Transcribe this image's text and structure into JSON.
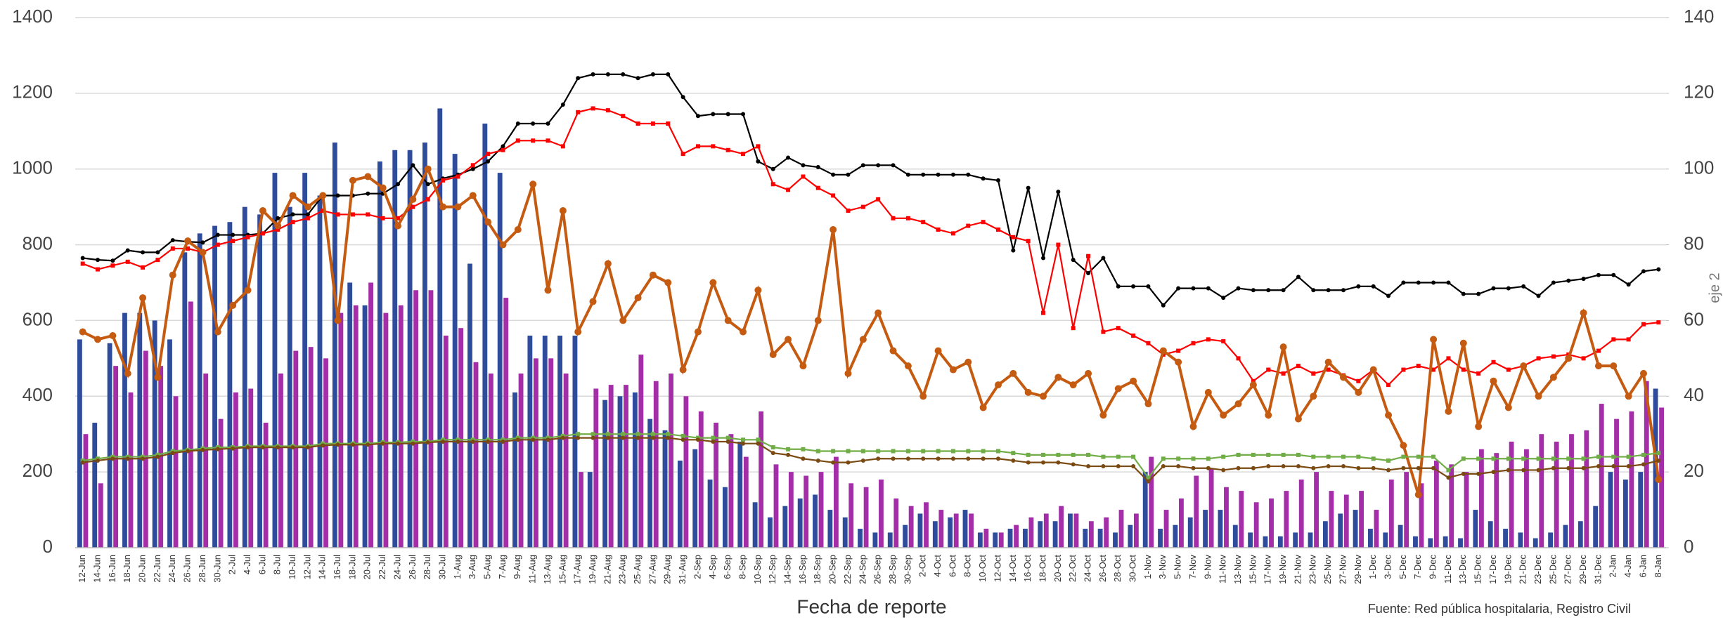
{
  "chart_data": {
    "type": "bar",
    "x_label": "Fecha de reporte",
    "y2_label": "eje 2",
    "source": "Fuente: Red pública hospitalaria, Registro Civil",
    "categories": [
      "12-Jun",
      "14-Jun",
      "16-Jun",
      "18-Jun",
      "20-Jun",
      "22-Jun",
      "24-Jun",
      "26-Jun",
      "28-Jun",
      "30-Jun",
      "2-Jul",
      "4-Jul",
      "6-Jul",
      "8-Jul",
      "10-Jul",
      "12-Jul",
      "14-Jul",
      "16-Jul",
      "18-Jul",
      "20-Jul",
      "22-Jul",
      "24-Jul",
      "26-Jul",
      "28-Jul",
      "30-Jul",
      "1-Aug",
      "3-Aug",
      "5-Aug",
      "7-Aug",
      "9-Aug",
      "11-Aug",
      "13-Aug",
      "15-Aug",
      "17-Aug",
      "19-Aug",
      "21-Aug",
      "23-Aug",
      "25-Aug",
      "27-Aug",
      "29-Aug",
      "31-Aug",
      "2-Sep",
      "4-Sep",
      "6-Sep",
      "8-Sep",
      "10-Sep",
      "12-Sep",
      "14-Sep",
      "16-Sep",
      "18-Sep",
      "20-Sep",
      "22-Sep",
      "24-Sep",
      "26-Sep",
      "28-Sep",
      "30-Sep",
      "2-Oct",
      "4-Oct",
      "6-Oct",
      "8-Oct",
      "10-Oct",
      "12-Oct",
      "14-Oct",
      "16-Oct",
      "18-Oct",
      "20-Oct",
      "22-Oct",
      "24-Oct",
      "26-Oct",
      "28-Oct",
      "30-Oct",
      "1-Nov",
      "3-Nov",
      "5-Nov",
      "7-Nov",
      "9-Nov",
      "11-Nov",
      "13-Nov",
      "15-Nov",
      "17-Nov",
      "19-Nov",
      "21-Nov",
      "23-Nov",
      "25-Nov",
      "27-Nov",
      "29-Nov",
      "1-Dec",
      "3-Dec",
      "5-Dec",
      "7-Dec",
      "9-Dec",
      "11-Dec",
      "13-Dec",
      "15-Dec",
      "17-Dec",
      "19-Dec",
      "21-Dec",
      "23-Dec",
      "25-Dec",
      "27-Dec",
      "29-Dec",
      "31-Dec",
      "2-Jan",
      "4-Jan",
      "6-Jan",
      "8-Jan"
    ],
    "ylim": [
      0,
      1400
    ],
    "yticks": [
      0,
      200,
      400,
      600,
      800,
      1000,
      1200,
      1400
    ],
    "y2lim": [
      0,
      140
    ],
    "y2ticks": [
      0,
      20,
      40,
      60,
      80,
      100,
      120,
      140
    ],
    "grid": true,
    "series": [
      {
        "type": "bar",
        "color": "#2f4b9b",
        "values": [
          550,
          330,
          540,
          620,
          620,
          600,
          550,
          780,
          830,
          850,
          860,
          900,
          880,
          990,
          900,
          990,
          930,
          1070,
          700,
          640,
          1020,
          1050,
          1050,
          1070,
          1160,
          1040,
          750,
          1120,
          990,
          410,
          560,
          560,
          560,
          560,
          200,
          390,
          400,
          410,
          340,
          310,
          230,
          260,
          180,
          160,
          280,
          120,
          80,
          110,
          130,
          140,
          100,
          80,
          50,
          40,
          40,
          60,
          90,
          70,
          80,
          100,
          40,
          40,
          50,
          50,
          70,
          70,
          90,
          50,
          50,
          40,
          60,
          200,
          50,
          60,
          80,
          100,
          100,
          60,
          40,
          30,
          30,
          40,
          40,
          70,
          90,
          100,
          50,
          40,
          60,
          30,
          25,
          30,
          25,
          100,
          70,
          50,
          40,
          25,
          40,
          60,
          70,
          110,
          200,
          180,
          200,
          420
        ]
      },
      {
        "type": "bar",
        "color": "#a32ea8",
        "values": [
          300,
          170,
          480,
          410,
          520,
          480,
          400,
          650,
          460,
          340,
          410,
          420,
          330,
          460,
          520,
          530,
          500,
          620,
          640,
          700,
          620,
          640,
          680,
          680,
          560,
          580,
          490,
          460,
          660,
          460,
          500,
          500,
          460,
          200,
          420,
          430,
          430,
          510,
          440,
          460,
          400,
          360,
          330,
          300,
          240,
          360,
          220,
          200,
          190,
          200,
          240,
          170,
          160,
          180,
          130,
          110,
          120,
          100,
          90,
          90,
          50,
          40,
          60,
          80,
          90,
          110,
          90,
          70,
          80,
          100,
          90,
          240,
          100,
          130,
          190,
          210,
          160,
          150,
          120,
          130,
          150,
          180,
          200,
          150,
          140,
          150,
          100,
          180,
          200,
          170,
          230,
          220,
          200,
          260,
          250,
          280,
          260,
          300,
          280,
          300,
          310,
          380,
          340,
          360,
          440,
          370
        ]
      },
      {
        "type": "line",
        "color": "#000000",
        "marker": "circle",
        "values": [
          765,
          760,
          758,
          785,
          780,
          780,
          812,
          808,
          806,
          826,
          826,
          826,
          830,
          870,
          880,
          880,
          930,
          930,
          930,
          935,
          935,
          960,
          1010,
          960,
          975,
          985,
          1000,
          1020,
          1060,
          1120,
          1120,
          1120,
          1170,
          1240,
          1250,
          1250,
          1250,
          1240,
          1250,
          1250,
          1190,
          1140,
          1145,
          1145,
          1145,
          1020,
          1000,
          1030,
          1010,
          1005,
          985,
          985,
          1010,
          1010,
          1010,
          985,
          985,
          985,
          985,
          985,
          975,
          970,
          785,
          950,
          765,
          940,
          760,
          725,
          765,
          690,
          690,
          690,
          640,
          685,
          685,
          685,
          660,
          685,
          680,
          680,
          680,
          715,
          680,
          680,
          680,
          690,
          690,
          665,
          700,
          700,
          700,
          700,
          670,
          670,
          685,
          685,
          690,
          665,
          700,
          705,
          710,
          720,
          720,
          695,
          730,
          735
        ]
      },
      {
        "type": "line",
        "color": "#ff0000",
        "marker": "square",
        "values": [
          750,
          735,
          745,
          755,
          740,
          760,
          790,
          790,
          780,
          800,
          810,
          820,
          830,
          840,
          860,
          870,
          890,
          880,
          880,
          880,
          870,
          870,
          900,
          920,
          970,
          980,
          1010,
          1040,
          1050,
          1075,
          1075,
          1075,
          1060,
          1150,
          1160,
          1155,
          1140,
          1120,
          1120,
          1120,
          1040,
          1060,
          1060,
          1050,
          1040,
          1060,
          960,
          945,
          980,
          950,
          930,
          890,
          900,
          920,
          870,
          870,
          860,
          840,
          830,
          850,
          860,
          840,
          820,
          810,
          620,
          800,
          580,
          770,
          570,
          580,
          560,
          540,
          510,
          520,
          540,
          550,
          545,
          500,
          440,
          470,
          460,
          480,
          460,
          470,
          455,
          440,
          470,
          430,
          470,
          480,
          470,
          500,
          470,
          460,
          490,
          470,
          480,
          500,
          505,
          510,
          500,
          520,
          550,
          550,
          590,
          595
        ]
      },
      {
        "type": "line",
        "color": "#c55a11",
        "marker": "circle",
        "axis": "y2",
        "values": [
          57,
          55,
          56,
          46,
          66,
          45,
          72,
          81,
          78,
          57,
          64,
          68,
          89,
          85,
          93,
          90,
          93,
          60,
          97,
          98,
          95,
          85,
          92,
          100,
          90,
          90,
          93,
          86,
          80,
          84,
          96,
          68,
          89,
          57,
          65,
          75,
          60,
          66,
          72,
          70,
          47,
          57,
          70,
          60,
          57,
          68,
          51,
          55,
          48,
          60,
          84,
          46,
          55,
          62,
          52,
          48,
          40,
          52,
          47,
          49,
          37,
          43,
          46,
          41,
          40,
          45,
          43,
          46,
          35,
          42,
          44,
          38,
          52,
          49,
          32,
          41,
          35,
          38,
          43,
          35,
          53,
          34,
          40,
          49,
          45,
          41,
          47,
          35,
          27,
          14,
          55,
          36,
          54,
          32,
          44,
          37,
          48,
          40,
          45,
          50,
          62,
          48,
          48,
          40,
          46,
          18
        ]
      },
      {
        "type": "line",
        "color": "#70ad47",
        "marker": "square",
        "values": [
          230,
          235,
          240,
          240,
          240,
          245,
          255,
          258,
          262,
          265,
          265,
          268,
          268,
          268,
          268,
          268,
          275,
          275,
          275,
          275,
          278,
          278,
          280,
          280,
          285,
          285,
          285,
          285,
          285,
          290,
          290,
          290,
          295,
          300,
          300,
          300,
          300,
          300,
          300,
          300,
          295,
          290,
          290,
          290,
          285,
          285,
          265,
          260,
          260,
          255,
          255,
          255,
          255,
          255,
          255,
          255,
          255,
          255,
          255,
          255,
          255,
          255,
          250,
          245,
          245,
          245,
          245,
          245,
          240,
          240,
          240,
          185,
          235,
          235,
          235,
          235,
          240,
          245,
          245,
          245,
          245,
          245,
          240,
          240,
          240,
          240,
          235,
          230,
          240,
          240,
          240,
          205,
          235,
          235,
          235,
          235,
          235,
          235,
          235,
          235,
          235,
          240,
          240,
          240,
          245,
          250
        ]
      },
      {
        "type": "line",
        "color": "#7b4a12",
        "marker": "circle",
        "values": [
          225,
          230,
          235,
          235,
          235,
          240,
          250,
          255,
          258,
          260,
          262,
          265,
          265,
          265,
          265,
          265,
          270,
          272,
          272,
          272,
          275,
          275,
          275,
          278,
          280,
          280,
          280,
          280,
          280,
          285,
          285,
          285,
          290,
          290,
          290,
          290,
          290,
          290,
          290,
          290,
          285,
          285,
          280,
          280,
          275,
          275,
          250,
          245,
          235,
          230,
          225,
          225,
          230,
          235,
          235,
          235,
          235,
          235,
          235,
          235,
          235,
          235,
          230,
          225,
          225,
          225,
          220,
          215,
          215,
          215,
          215,
          175,
          215,
          215,
          210,
          210,
          205,
          210,
          210,
          215,
          215,
          215,
          210,
          215,
          215,
          210,
          210,
          205,
          210,
          210,
          210,
          185,
          195,
          195,
          200,
          205,
          205,
          205,
          210,
          210,
          210,
          215,
          215,
          215,
          220,
          230
        ]
      }
    ]
  }
}
